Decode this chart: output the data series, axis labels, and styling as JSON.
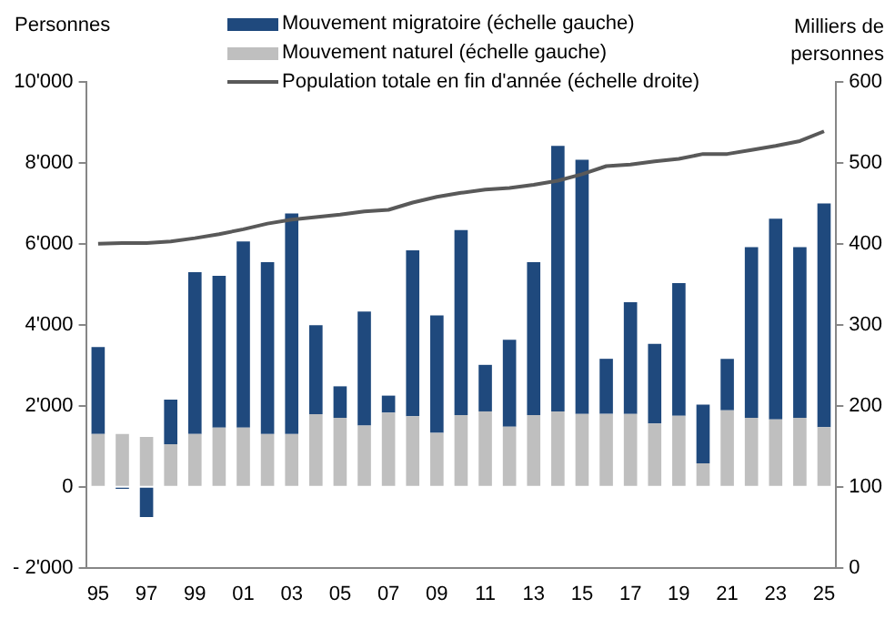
{
  "chart_data": {
    "type": "bar",
    "stacked": true,
    "ylabel": "Personnes",
    "y2label": "Milliers de personnes",
    "categories": [
      "95",
      null,
      "97",
      null,
      "99",
      null,
      "01",
      null,
      "03",
      null,
      "05",
      null,
      "07",
      null,
      "09",
      null,
      "11",
      null,
      "13",
      null,
      "15",
      null,
      "17",
      null,
      "19",
      null,
      "21",
      null,
      "23",
      null,
      "25"
    ],
    "series": [
      {
        "name": "Mouvement naturel (échelle gauche)",
        "color": "#bfbfbf",
        "values": [
          1300,
          1300,
          1230,
          1050,
          1300,
          1460,
          1460,
          1300,
          1300,
          1790,
          1700,
          1510,
          1830,
          1740,
          1330,
          1770,
          1860,
          1480,
          1770,
          1860,
          1800,
          1800,
          1800,
          1560,
          1750,
          580,
          1890,
          1700,
          1660,
          1700,
          1470
        ]
      },
      {
        "name": "Mouvement migratoire (échelle gauche)",
        "color": "#1f497d",
        "values": [
          2150,
          -50,
          -750,
          1100,
          4000,
          3750,
          4600,
          4250,
          5450,
          2200,
          780,
          2820,
          420,
          4100,
          2900,
          4570,
          1150,
          2150,
          3780,
          6560,
          6280,
          1360,
          2760,
          1970,
          3280,
          1450,
          1270,
          4220,
          4960,
          4220,
          5530
        ]
      },
      {
        "name": "Population totale en fin d'année (échelle droite)",
        "type": "line",
        "axis": "y2",
        "color": "#595959",
        "values": [
          400,
          401,
          401,
          403,
          407,
          412,
          418,
          425,
          430,
          433,
          436,
          440,
          442,
          451,
          458,
          463,
          467,
          469,
          473,
          478,
          486,
          496,
          498,
          502,
          505,
          511,
          511,
          516,
          521,
          527,
          539
        ]
      }
    ],
    "ylim": [
      -2000,
      10000
    ],
    "yticks": [
      {
        "value": -2000,
        "label": "- 2'000"
      },
      {
        "value": 0,
        "label": "0"
      },
      {
        "value": 2000,
        "label": "2'000"
      },
      {
        "value": 4000,
        "label": "4'000"
      },
      {
        "value": 6000,
        "label": "6'000"
      },
      {
        "value": 8000,
        "label": "8'000"
      },
      {
        "value": 10000,
        "label": "10'000"
      }
    ],
    "y2lim": [
      0,
      600
    ],
    "y2ticks": [
      0,
      100,
      200,
      300,
      400,
      500,
      600
    ],
    "grid": false,
    "legend": "top",
    "marker": "none"
  }
}
